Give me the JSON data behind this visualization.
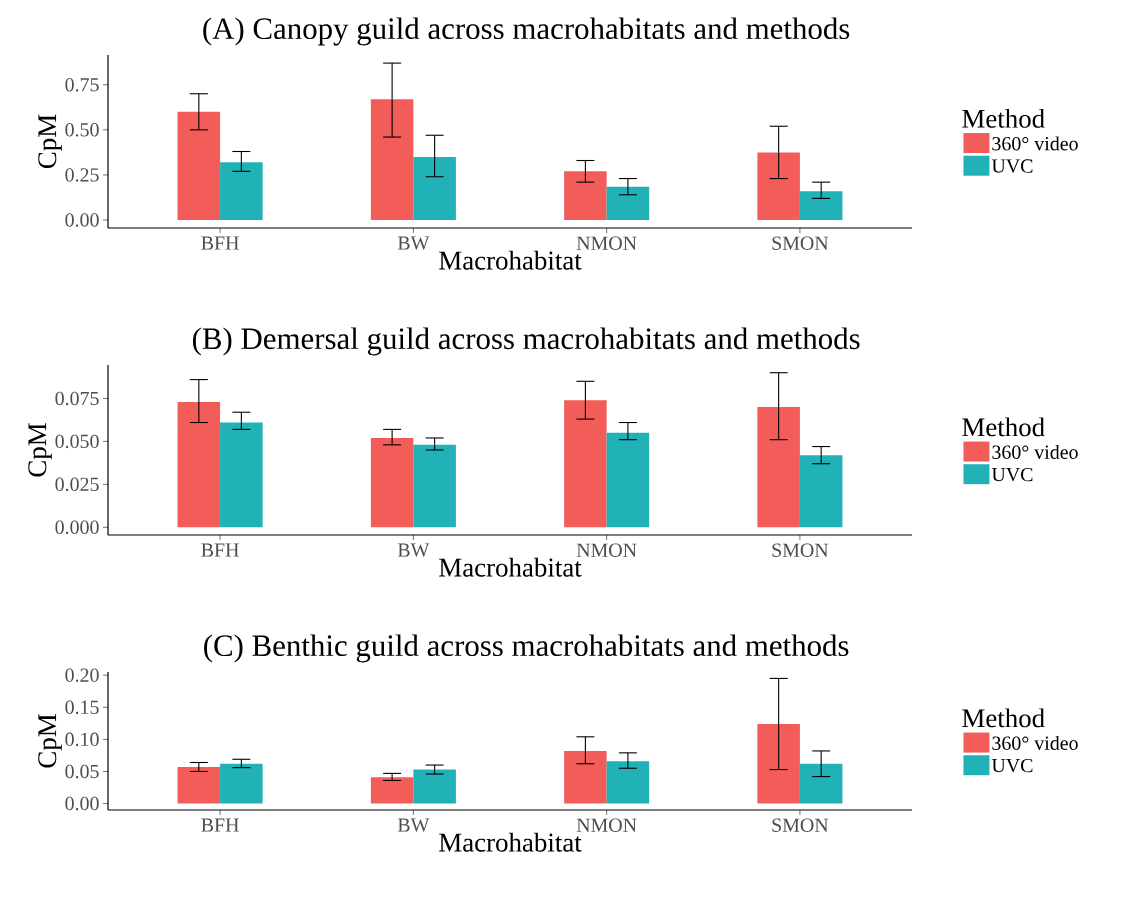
{
  "chart_data": [
    {
      "type": "bar",
      "title": "(A) Canopy guild across macrohabitats and methods",
      "xlabel": "Macrohabitat",
      "ylabel": "CpM",
      "legend_title": "Method",
      "legend": "right",
      "categories": [
        "BFH",
        "BW",
        "NMON",
        "SMON"
      ],
      "series": [
        {
          "name": "360° video",
          "color": "#f25d59",
          "values": [
            0.6,
            0.67,
            0.27,
            0.375
          ],
          "errors": [
            [
              0.5,
              0.7
            ],
            [
              0.46,
              0.87
            ],
            [
              0.21,
              0.33
            ],
            [
              0.23,
              0.52
            ]
          ]
        },
        {
          "name": "UVC",
          "color": "#20b2b7",
          "values": [
            0.32,
            0.35,
            0.185,
            0.16
          ],
          "errors": [
            [
              0.27,
              0.38
            ],
            [
              0.24,
              0.47
            ],
            [
              0.14,
              0.23
            ],
            [
              0.12,
              0.21
            ]
          ]
        }
      ],
      "ylim": [
        -0.044,
        0.915
      ],
      "yticks": [
        {
          "value": 0,
          "label": "0.00"
        },
        0.25,
        {
          "value": 0.5,
          "label": "0.50"
        },
        0.75
      ]
    },
    {
      "type": "bar",
      "title": "(B) Demersal guild across macrohabitats and methods",
      "xlabel": "Macrohabitat",
      "ylabel": "CpM",
      "legend_title": "Method",
      "legend": "right",
      "categories": [
        "BFH",
        "BW",
        "NMON",
        "SMON"
      ],
      "series": [
        {
          "name": "360° video",
          "color": "#f25d59",
          "values": [
            0.073,
            0.052,
            0.074,
            0.07
          ],
          "errors": [
            [
              0.061,
              0.086
            ],
            [
              0.048,
              0.057
            ],
            [
              0.063,
              0.085
            ],
            [
              0.051,
              0.09
            ]
          ]
        },
        {
          "name": "UVC",
          "color": "#20b2b7",
          "values": [
            0.061,
            0.048,
            0.055,
            0.042
          ],
          "errors": [
            [
              0.057,
              0.067
            ],
            [
              0.045,
              0.052
            ],
            [
              0.051,
              0.061
            ],
            [
              0.037,
              0.047
            ]
          ]
        }
      ],
      "ylim": [
        -0.0045,
        0.0945
      ],
      "yticks": [
        {
          "value": 0,
          "label": "0.000"
        },
        0.025,
        {
          "value": 0.05,
          "label": "0.050"
        },
        0.075
      ]
    },
    {
      "type": "bar",
      "title": "(C) Benthic guild across macrohabitats and methods",
      "xlabel": "Macrohabitat",
      "ylabel": "CpM",
      "legend_title": "Method",
      "legend": "right",
      "categories": [
        "BFH",
        "BW",
        "NMON",
        "SMON"
      ],
      "series": [
        {
          "name": "360° video",
          "color": "#f25d59",
          "values": [
            0.057,
            0.041,
            0.082,
            0.124
          ],
          "errors": [
            [
              0.05,
              0.064
            ],
            [
              0.036,
              0.047
            ],
            [
              0.062,
              0.104
            ],
            [
              0.053,
              0.195
            ]
          ]
        },
        {
          "name": "UVC",
          "color": "#20b2b7",
          "values": [
            0.062,
            0.053,
            0.066,
            0.062
          ],
          "errors": [
            [
              0.056,
              0.069
            ],
            [
              0.046,
              0.06
            ],
            [
              0.055,
              0.079
            ],
            [
              0.042,
              0.082
            ]
          ]
        }
      ],
      "ylim": [
        -0.01,
        0.205
      ],
      "yticks": [
        {
          "value": 0,
          "label": "0.00"
        },
        {
          "value": 0.05,
          "label": "0.05"
        },
        {
          "value": 0.1,
          "label": "0.10"
        },
        0.15,
        {
          "value": 0.2,
          "label": "0.20"
        }
      ]
    }
  ]
}
